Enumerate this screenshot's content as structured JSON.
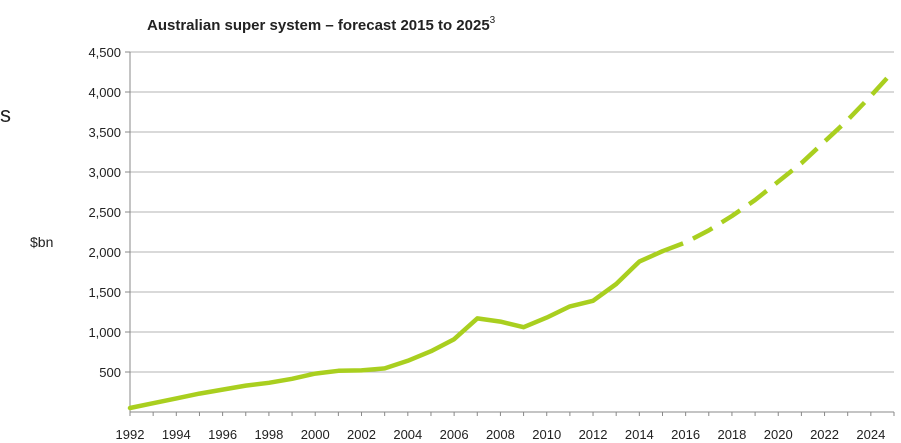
{
  "chart_data": {
    "type": "line",
    "title": "Australian super system – forecast 2015 to 2025",
    "title_superscript": "3",
    "xlabel": "",
    "ylabel": "$bn",
    "ylim": [
      0,
      4500
    ],
    "yticks": [
      500,
      1000,
      1500,
      2000,
      2500,
      3000,
      3500,
      4000,
      4500
    ],
    "ytick_labels": [
      "500",
      "1,000",
      "1,500",
      "2,000",
      "2,500",
      "3,000",
      "3,500",
      "4,000",
      "4,500"
    ],
    "xlim": [
      1992,
      2025
    ],
    "xtick_labels": [
      "1992",
      "1994",
      "1996",
      "1998",
      "2000",
      "2002",
      "2004",
      "2006",
      "2008",
      "2010",
      "2012",
      "2014",
      "2016",
      "2018",
      "2020",
      "2022",
      "2024"
    ],
    "grid": true,
    "legend": false,
    "line_color": "#a9cf1f",
    "series": [
      {
        "style": "solid",
        "x": [
          1992,
          1993,
          1994,
          1995,
          1996,
          1997,
          1998,
          1999,
          2000,
          2001,
          2002,
          2003,
          2004,
          2005,
          2006,
          2007,
          2008,
          2009,
          2010,
          2011,
          2012,
          2013,
          2014,
          2015
        ],
        "values": [
          50,
          110,
          170,
          230,
          280,
          330,
          365,
          415,
          480,
          515,
          520,
          545,
          640,
          760,
          910,
          1170,
          1130,
          1060,
          1180,
          1320,
          1390,
          1600,
          1880,
          2010
        ]
      },
      {
        "style": "dashed",
        "x": [
          2015,
          2016,
          2017,
          2018,
          2019,
          2020,
          2021,
          2022,
          2023,
          2024,
          2025
        ],
        "values": [
          2010,
          2120,
          2270,
          2450,
          2650,
          2880,
          3110,
          3380,
          3650,
          3950,
          4270
        ]
      }
    ]
  },
  "page_fragment": {
    "left_edge_text": "s"
  }
}
